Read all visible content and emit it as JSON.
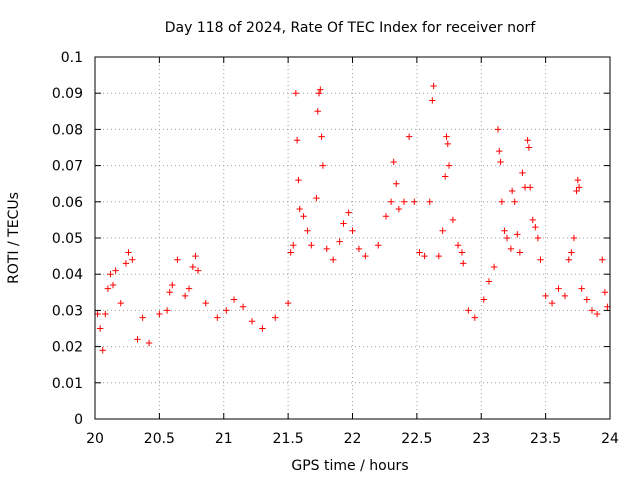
{
  "chart_data": {
    "type": "scatter",
    "title": "Day 118 of 2024, Rate Of TEC Index for receiver norf",
    "xlabel": "GPS time / hours",
    "ylabel": "ROTI / TECUs",
    "xlim": [
      20,
      24
    ],
    "ylim": [
      0,
      0.1
    ],
    "x_ticks": [
      20,
      20.5,
      21,
      21.5,
      22,
      22.5,
      23,
      23.5,
      24
    ],
    "x_tick_labels": [
      "20",
      "20.5",
      "21",
      "21.5",
      "22",
      "22.5",
      "23",
      "23.5",
      "24"
    ],
    "y_ticks": [
      0,
      0.01,
      0.02,
      0.03,
      0.04,
      0.05,
      0.06,
      0.07,
      0.08,
      0.09,
      0.1
    ],
    "y_tick_labels": [
      "0",
      "0.01",
      "0.02",
      "0.03",
      "0.04",
      "0.05",
      "0.06",
      "0.07",
      "0.08",
      "0.09",
      "0.1"
    ],
    "grid": true,
    "marker": "+",
    "color": "#ff0000",
    "series": [
      {
        "name": "ROTI",
        "points": [
          [
            20.02,
            0.029
          ],
          [
            20.04,
            0.025
          ],
          [
            20.06,
            0.019
          ],
          [
            20.08,
            0.029
          ],
          [
            20.1,
            0.036
          ],
          [
            20.12,
            0.04
          ],
          [
            20.14,
            0.037
          ],
          [
            20.16,
            0.041
          ],
          [
            20.2,
            0.032
          ],
          [
            20.24,
            0.043
          ],
          [
            20.26,
            0.046
          ],
          [
            20.29,
            0.044
          ],
          [
            20.33,
            0.022
          ],
          [
            20.37,
            0.028
          ],
          [
            20.42,
            0.021
          ],
          [
            20.5,
            0.029
          ],
          [
            20.56,
            0.03
          ],
          [
            20.58,
            0.035
          ],
          [
            20.6,
            0.037
          ],
          [
            20.64,
            0.044
          ],
          [
            20.7,
            0.034
          ],
          [
            20.73,
            0.036
          ],
          [
            20.76,
            0.042
          ],
          [
            20.78,
            0.045
          ],
          [
            20.8,
            0.041
          ],
          [
            20.86,
            0.032
          ],
          [
            20.95,
            0.028
          ],
          [
            21.02,
            0.03
          ],
          [
            21.08,
            0.033
          ],
          [
            21.15,
            0.031
          ],
          [
            21.22,
            0.027
          ],
          [
            21.3,
            0.025
          ],
          [
            21.4,
            0.028
          ],
          [
            21.5,
            0.032
          ],
          [
            21.52,
            0.046
          ],
          [
            21.54,
            0.048
          ],
          [
            21.56,
            0.09
          ],
          [
            21.57,
            0.077
          ],
          [
            21.58,
            0.066
          ],
          [
            21.59,
            0.058
          ],
          [
            21.62,
            0.056
          ],
          [
            21.65,
            0.052
          ],
          [
            21.68,
            0.048
          ],
          [
            21.72,
            0.061
          ],
          [
            21.73,
            0.085
          ],
          [
            21.74,
            0.09
          ],
          [
            21.75,
            0.091
          ],
          [
            21.76,
            0.078
          ],
          [
            21.77,
            0.07
          ],
          [
            21.8,
            0.047
          ],
          [
            21.85,
            0.044
          ],
          [
            21.9,
            0.049
          ],
          [
            21.93,
            0.054
          ],
          [
            21.97,
            0.057
          ],
          [
            22.0,
            0.052
          ],
          [
            22.05,
            0.047
          ],
          [
            22.1,
            0.045
          ],
          [
            22.2,
            0.048
          ],
          [
            22.26,
            0.056
          ],
          [
            22.3,
            0.06
          ],
          [
            22.32,
            0.071
          ],
          [
            22.34,
            0.065
          ],
          [
            22.36,
            0.058
          ],
          [
            22.4,
            0.06
          ],
          [
            22.44,
            0.078
          ],
          [
            22.48,
            0.06
          ],
          [
            22.52,
            0.046
          ],
          [
            22.56,
            0.045
          ],
          [
            22.6,
            0.06
          ],
          [
            22.62,
            0.088
          ],
          [
            22.63,
            0.092
          ],
          [
            22.67,
            0.045
          ],
          [
            22.7,
            0.052
          ],
          [
            22.72,
            0.067
          ],
          [
            22.73,
            0.078
          ],
          [
            22.74,
            0.076
          ],
          [
            22.75,
            0.07
          ],
          [
            22.78,
            0.055
          ],
          [
            22.82,
            0.048
          ],
          [
            22.85,
            0.046
          ],
          [
            22.86,
            0.043
          ],
          [
            22.9,
            0.03
          ],
          [
            22.95,
            0.028
          ],
          [
            23.02,
            0.033
          ],
          [
            23.06,
            0.038
          ],
          [
            23.1,
            0.042
          ],
          [
            23.13,
            0.08
          ],
          [
            23.14,
            0.074
          ],
          [
            23.15,
            0.071
          ],
          [
            23.16,
            0.06
          ],
          [
            23.18,
            0.052
          ],
          [
            23.2,
            0.05
          ],
          [
            23.23,
            0.047
          ],
          [
            23.24,
            0.063
          ],
          [
            23.26,
            0.06
          ],
          [
            23.28,
            0.051
          ],
          [
            23.3,
            0.046
          ],
          [
            23.32,
            0.068
          ],
          [
            23.34,
            0.064
          ],
          [
            23.36,
            0.077
          ],
          [
            23.37,
            0.075
          ],
          [
            23.38,
            0.064
          ],
          [
            23.4,
            0.055
          ],
          [
            23.42,
            0.053
          ],
          [
            23.44,
            0.05
          ],
          [
            23.46,
            0.044
          ],
          [
            23.5,
            0.034
          ],
          [
            23.55,
            0.032
          ],
          [
            23.6,
            0.036
          ],
          [
            23.65,
            0.034
          ],
          [
            23.68,
            0.044
          ],
          [
            23.7,
            0.046
          ],
          [
            23.72,
            0.05
          ],
          [
            23.74,
            0.063
          ],
          [
            23.75,
            0.066
          ],
          [
            23.76,
            0.064
          ],
          [
            23.78,
            0.036
          ],
          [
            23.82,
            0.033
          ],
          [
            23.86,
            0.03
          ],
          [
            23.9,
            0.029
          ],
          [
            23.94,
            0.044
          ],
          [
            23.96,
            0.035
          ],
          [
            23.98,
            0.031
          ]
        ]
      }
    ]
  }
}
